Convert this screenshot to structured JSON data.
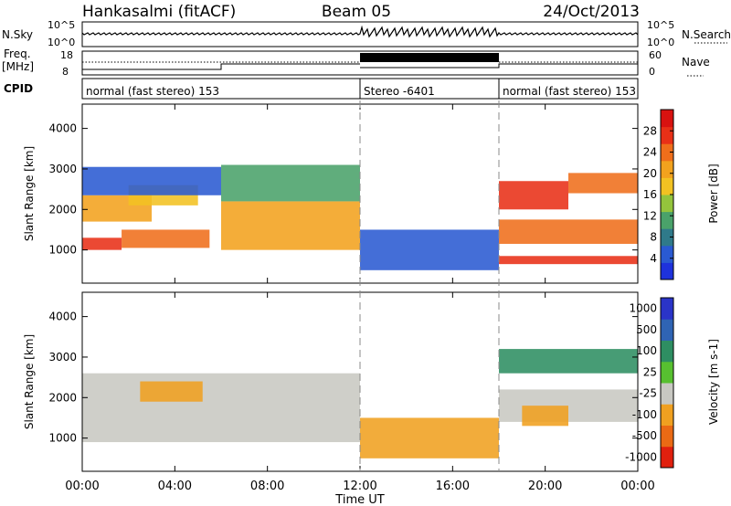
{
  "header": {
    "station": "Hankasalmi (fitACF)",
    "beam": "Beam 05",
    "date": "24/Oct/2013"
  },
  "side_labels": {
    "nsky": "N.Sky",
    "nsearch": "N.Search",
    "freq": "Freq.",
    "mhz": "[MHz]",
    "nave": "Nave",
    "cpid": "CPID"
  },
  "small_ticks": {
    "nsky_top": "10^5",
    "nsky_bottom": "10^0",
    "freq_top": "18",
    "freq_bottom": "8",
    "nave_top": "60",
    "nave_bottom": "0"
  },
  "cpid_segments": [
    {
      "label": "normal (fast stereo) 153",
      "start": 0,
      "end": 12
    },
    {
      "label": "Stereo -6401",
      "start": 12,
      "end": 18
    },
    {
      "label": "normal (fast stereo) 153",
      "start": 18,
      "end": 24
    }
  ],
  "chart_data": [
    {
      "type": "heatmap",
      "name": "power-panel",
      "ylabel": "Slant Range [km]",
      "xlabel": "Time UT",
      "xlim": [
        0,
        24
      ],
      "ylim": [
        180,
        4600
      ],
      "x_ticks": [
        "00:00",
        "04:00",
        "08:00",
        "12:00",
        "16:00",
        "20:00",
        "00:00"
      ],
      "y_ticks": [
        1000,
        2000,
        3000,
        4000
      ],
      "colorbar": {
        "label": "Power [dB]",
        "range": [
          0,
          32
        ],
        "ticks": [
          4,
          8,
          12,
          16,
          20,
          24,
          28
        ],
        "colors": [
          "#1e32dc",
          "#2a5ad2",
          "#2f7a8a",
          "#4aa26a",
          "#94c43c",
          "#f2c222",
          "#f2a21e",
          "#ef6e1b",
          "#e83017",
          "#d81210"
        ]
      },
      "bands": [
        {
          "t0": 0.0,
          "t1": 1.7,
          "r0": 1000,
          "r1": 1300,
          "value": 28
        },
        {
          "t0": 1.7,
          "t1": 5.5,
          "r0": 1050,
          "r1": 1500,
          "value": 24
        },
        {
          "t0": 0.0,
          "t1": 3.0,
          "r0": 1700,
          "r1": 2350,
          "value": 20
        },
        {
          "t0": 2.0,
          "t1": 5.0,
          "r0": 2100,
          "r1": 2600,
          "value": 16
        },
        {
          "t0": 0.0,
          "t1": 6.0,
          "r0": 2350,
          "r1": 3050,
          "value": 6
        },
        {
          "t0": 6.0,
          "t1": 12.0,
          "r0": 1000,
          "r1": 2200,
          "value": 22
        },
        {
          "t0": 6.0,
          "t1": 12.0,
          "r0": 2200,
          "r1": 3100,
          "value": 12
        },
        {
          "t0": 12.0,
          "t1": 18.0,
          "r0": 500,
          "r1": 1500,
          "value": 5
        },
        {
          "t0": 18.0,
          "t1": 21.0,
          "r0": 2000,
          "r1": 2700,
          "value": 27
        },
        {
          "t0": 21.0,
          "t1": 24.0,
          "r0": 2400,
          "r1": 2900,
          "value": 25
        },
        {
          "t0": 18.0,
          "t1": 24.0,
          "r0": 1150,
          "r1": 1750,
          "value": 24
        },
        {
          "t0": 18.0,
          "t1": 24.0,
          "r0": 650,
          "r1": 850,
          "value": 28
        }
      ]
    },
    {
      "type": "heatmap",
      "name": "velocity-panel",
      "ylabel": "Slant Range [km]",
      "xlabel": "Time UT",
      "xlim": [
        0,
        24
      ],
      "ylim": [
        180,
        4600
      ],
      "x_ticks": [
        "00:00",
        "04:00",
        "08:00",
        "12:00",
        "16:00",
        "20:00",
        "00:00"
      ],
      "y_ticks": [
        1000,
        2000,
        3000,
        4000
      ],
      "colorbar": {
        "label": "Velocity [m s-1]",
        "tick_labels": [
          "1000",
          "500",
          "100",
          "25",
          "-25",
          "-100",
          "-500",
          "-1000"
        ],
        "colors": [
          "#2a34c8",
          "#2f64b4",
          "#2e8e62",
          "#57c030",
          "#c8c8c2",
          "#f0a020",
          "#ea6a14",
          "#e0200e"
        ]
      },
      "bands": [
        {
          "t0": 0.0,
          "t1": 12.0,
          "r0": 900,
          "r1": 2600,
          "value": 4
        },
        {
          "t0": 2.5,
          "t1": 5.2,
          "r0": 1900,
          "r1": 2400,
          "value": 5
        },
        {
          "t0": 12.0,
          "t1": 18.0,
          "r0": 500,
          "r1": 1500,
          "value": 5
        },
        {
          "t0": 18.0,
          "t1": 24.0,
          "r0": 2600,
          "r1": 3200,
          "value": 2
        },
        {
          "t0": 18.0,
          "t1": 24.0,
          "r0": 1400,
          "r1": 2200,
          "value": 4
        },
        {
          "t0": 19.0,
          "t1": 21.0,
          "r0": 1300,
          "r1": 1800,
          "value": 5
        }
      ]
    }
  ]
}
